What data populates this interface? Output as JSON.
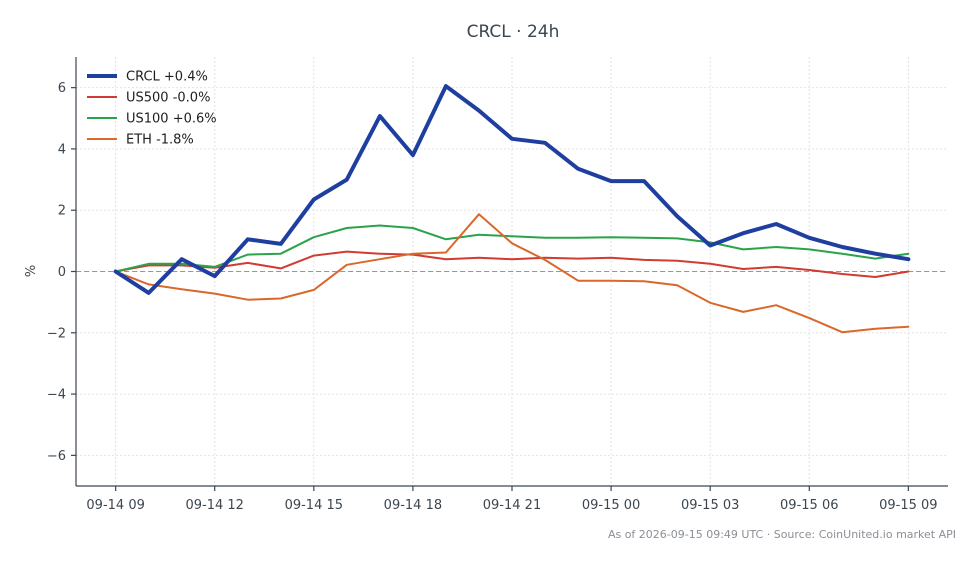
{
  "footer_text": "As of 2026-09-15 09:49 UTC · Source: CoinUnited.io market API",
  "chart_data": {
    "type": "line",
    "title": "CRCL · 24h",
    "xlabel": "",
    "ylabel": "%",
    "x_tick_labels": [
      "09-14 09",
      "09-14 12",
      "09-14 15",
      "09-14 18",
      "09-14 21",
      "09-15 00",
      "09-15 03",
      "09-15 06",
      "09-15 09"
    ],
    "x_tick_positions_hours": [
      0,
      3,
      6,
      9,
      12,
      15,
      18,
      21,
      24
    ],
    "xlim_hours": [
      -1.2,
      25.2
    ],
    "ylim": [
      -7,
      7
    ],
    "y_ticks": [
      -6,
      -4,
      -2,
      0,
      2,
      4,
      6
    ],
    "y_tick_labels": [
      "−6",
      "−4",
      "−2",
      "0",
      "2",
      "4",
      "6"
    ],
    "grid": true,
    "zero_line": true,
    "legend_position": "top-left",
    "x_hours": [
      0,
      1,
      2,
      3,
      4,
      5,
      6,
      7,
      8,
      9,
      10,
      11,
      12,
      13,
      14,
      15,
      16,
      17,
      18,
      19,
      20,
      21,
      22,
      23,
      24
    ],
    "series": [
      {
        "name": "CRCL +0.4%",
        "color": "#1f3fa0",
        "width": 4,
        "values": [
          0.0,
          -0.7,
          0.4,
          -0.15,
          1.05,
          0.9,
          2.35,
          3.0,
          5.07,
          3.8,
          6.05,
          5.25,
          4.33,
          4.2,
          3.35,
          2.95,
          2.95,
          1.8,
          0.85,
          1.25,
          1.55,
          1.1,
          0.8,
          0.58,
          0.4
        ]
      },
      {
        "name": "US500 -0.0%",
        "color": "#d03b34",
        "width": 2,
        "values": [
          0.0,
          0.2,
          0.2,
          0.12,
          0.28,
          0.1,
          0.52,
          0.65,
          0.58,
          0.55,
          0.4,
          0.45,
          0.4,
          0.45,
          0.42,
          0.45,
          0.38,
          0.35,
          0.25,
          0.08,
          0.15,
          0.05,
          -0.08,
          -0.18,
          0.0
        ]
      },
      {
        "name": "US100 +0.6%",
        "color": "#2ca34a",
        "width": 2,
        "values": [
          0.0,
          0.25,
          0.25,
          0.15,
          0.55,
          0.58,
          1.12,
          1.42,
          1.5,
          1.42,
          1.05,
          1.2,
          1.15,
          1.1,
          1.1,
          1.12,
          1.1,
          1.08,
          0.95,
          0.72,
          0.8,
          0.72,
          0.58,
          0.42,
          0.58
        ]
      },
      {
        "name": "ETH -1.8%",
        "color": "#d9682a",
        "width": 2,
        "values": [
          0.0,
          -0.42,
          -0.58,
          -0.72,
          -0.92,
          -0.88,
          -0.6,
          0.22,
          0.4,
          0.58,
          0.62,
          1.87,
          0.92,
          0.38,
          -0.3,
          -0.3,
          -0.32,
          -0.45,
          -1.02,
          -1.32,
          -1.1,
          -1.52,
          -1.98,
          -1.87,
          -1.8
        ]
      }
    ]
  }
}
